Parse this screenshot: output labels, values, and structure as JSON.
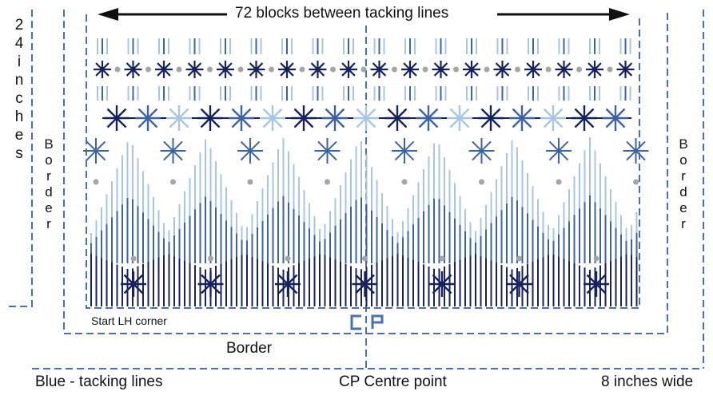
{
  "diagram": {
    "top_label": "72 blocks between tacking lines",
    "height_label": "24 inches",
    "left_border_label": "Border",
    "right_border_label": "Border",
    "bottom_border_label": "Border",
    "start_label": "Start LH corner",
    "cp_marker": "CP",
    "legend_tacking": "Blue - tacking lines",
    "legend_cp": "CP Centre point",
    "width_label": "8 inches wide"
  },
  "colors": {
    "dark_navy": "#16215e",
    "mid_blue": "#3c63a8",
    "light_blue": "#a8c6e4",
    "tacking_line": "#4a6fb5",
    "dot_grey": "#a6a6a6",
    "text": "#111111"
  }
}
